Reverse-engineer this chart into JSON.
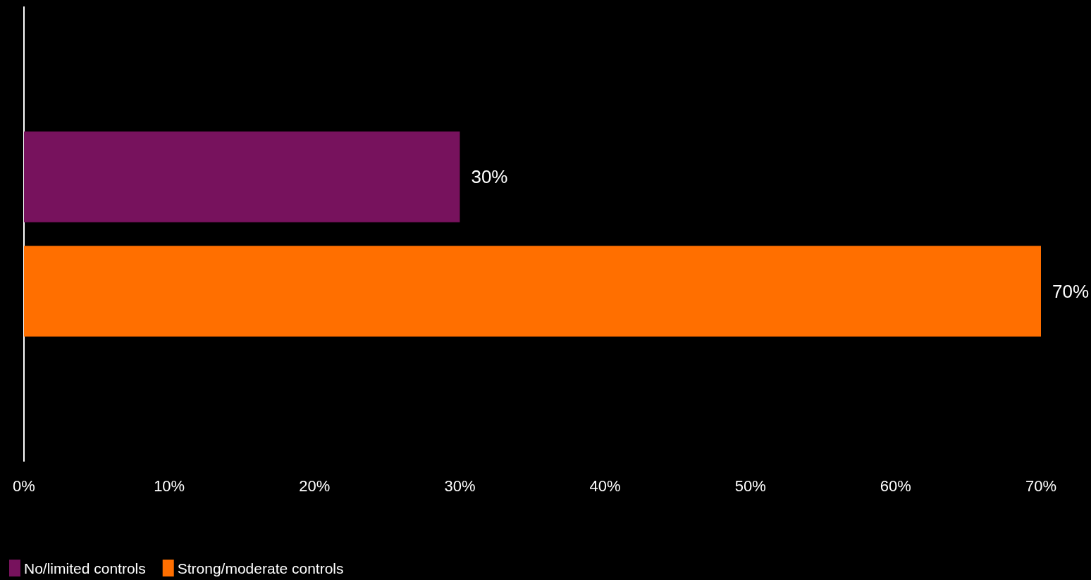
{
  "chart_data": {
    "type": "bar",
    "orientation": "horizontal",
    "categories": [
      null
    ],
    "series": [
      {
        "name": "No/limited controls",
        "color": "#77125d",
        "values": [
          30
        ],
        "value_labels": [
          "30%"
        ]
      },
      {
        "name": "Strong/moderate controls",
        "color": "#ff6f00",
        "values": [
          70
        ],
        "value_labels": [
          "70%"
        ]
      }
    ],
    "xlim": [
      0,
      70
    ],
    "xticks": [
      {
        "value": 0,
        "label": "0%"
      },
      {
        "value": 10,
        "label": "10%"
      },
      {
        "value": 20,
        "label": "20%"
      },
      {
        "value": 30,
        "label": "30%"
      },
      {
        "value": 40,
        "label": "40%"
      },
      {
        "value": 50,
        "label": "50%"
      },
      {
        "value": 60,
        "label": "60%"
      },
      {
        "value": 70,
        "label": "70%"
      }
    ],
    "grid": false,
    "legend": "bottom left"
  }
}
